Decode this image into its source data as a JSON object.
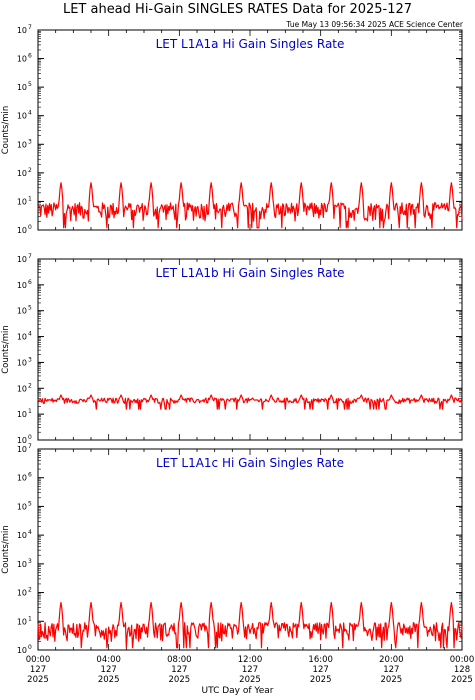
{
  "header": {
    "title": "LET ahead Hi-Gain SINGLES RATES Data for 2025-127",
    "timestamp": "Tue May 13 09:56:34 2025 ACE Science Center"
  },
  "x_axis_title": "UTC Day of Year",
  "colors": {
    "series": "#ff0000",
    "panel_title": "#0000cc",
    "axes": "#000000"
  },
  "chart_data": [
    {
      "type": "line",
      "title": "LET L1A1a Hi Gain Singles Rate",
      "ylabel": "Counts/min",
      "yscale": "log",
      "ylim": [
        1,
        10000000
      ],
      "xlim_hours": [
        0,
        24
      ],
      "baseline": 5,
      "noise_low": 2,
      "noise_high": 9,
      "spike_value": 45,
      "spike_hours": [
        1.3,
        3.0,
        4.7,
        6.4,
        8.1,
        9.8,
        11.5,
        13.2,
        14.9,
        16.6,
        18.3,
        20.0,
        21.7,
        23.4
      ]
    },
    {
      "type": "line",
      "title": "LET L1A1b Hi Gain Singles Rate",
      "ylabel": "Counts/min",
      "yscale": "log",
      "ylim": [
        1,
        10000000
      ],
      "xlim_hours": [
        0,
        24
      ],
      "baseline": 33,
      "noise_low": 26,
      "noise_high": 42,
      "spike_value": 55,
      "spike_hours": [
        1.3,
        3.0,
        4.7,
        6.4,
        8.1,
        9.8,
        11.5,
        13.2,
        14.9,
        16.6,
        18.3,
        20.0,
        21.7,
        23.4
      ]
    },
    {
      "type": "line",
      "title": "LET L1A1c Hi Gain Singles Rate",
      "ylabel": "Counts/min",
      "yscale": "log",
      "ylim": [
        1,
        10000000
      ],
      "xlim_hours": [
        0,
        24
      ],
      "baseline": 5,
      "noise_low": 2,
      "noise_high": 9,
      "spike_value": 45,
      "spike_hours": [
        1.3,
        3.0,
        4.7,
        6.4,
        8.1,
        9.8,
        11.5,
        13.2,
        14.9,
        16.6,
        18.3,
        20.0,
        21.7,
        23.4
      ]
    }
  ],
  "y_tick_labels": [
    "10",
    "10",
    "10",
    "10",
    "10",
    "10",
    "10",
    "10"
  ],
  "y_tick_exponents": [
    "0",
    "1",
    "2",
    "3",
    "4",
    "5",
    "6",
    "7"
  ],
  "x_ticks": [
    {
      "hour": 0,
      "time": "00:00",
      "doy": "127",
      "year": "2025"
    },
    {
      "hour": 4,
      "time": "04:00",
      "doy": "127",
      "year": "2025"
    },
    {
      "hour": 8,
      "time": "08:00",
      "doy": "127",
      "year": "2025"
    },
    {
      "hour": 12,
      "time": "12:00",
      "doy": "127",
      "year": "2025"
    },
    {
      "hour": 16,
      "time": "16:00",
      "doy": "127",
      "year": "2025"
    },
    {
      "hour": 20,
      "time": "20:00",
      "doy": "127",
      "year": "2025"
    },
    {
      "hour": 24,
      "time": "00:00",
      "doy": "128",
      "year": "2025"
    }
  ]
}
